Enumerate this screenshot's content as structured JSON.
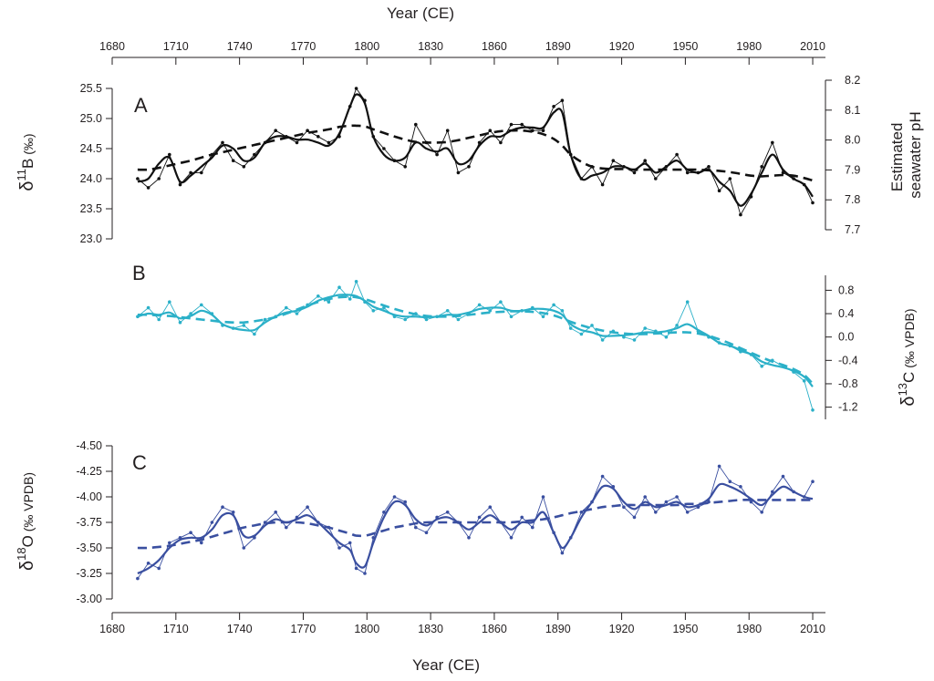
{
  "figure": {
    "xlabel_top": "Year (CE)",
    "xlabel_bottom": "Year (CE)",
    "year_ticks": [
      1680,
      1710,
      1740,
      1770,
      1800,
      1830,
      1860,
      1890,
      1920,
      1950,
      1980,
      2010
    ],
    "xlim": [
      1680,
      2016
    ]
  },
  "colors": {
    "boron": "#111111",
    "carbon": "#2bb0c8",
    "oxygen": "#3a4fa0",
    "axis": "#231f20"
  },
  "chart_data": [
    {
      "type": "line",
      "panel": "A",
      "ylabel_parts": [
        "δ",
        "11",
        "B",
        " (‰)"
      ],
      "ylim": [
        23.0,
        25.5
      ],
      "yticks": [
        25.5,
        25.0,
        24.5,
        24.0,
        23.5,
        23.0
      ],
      "y2label": [
        "Estimated",
        "seawater pH"
      ],
      "y2lim": [
        7.7,
        8.2
      ],
      "y2ticks": [
        8.2,
        8.1,
        8.0,
        7.9,
        7.8,
        7.7
      ],
      "x": [
        1692,
        1697,
        1702,
        1707,
        1712,
        1717,
        1722,
        1727,
        1732,
        1737,
        1742,
        1747,
        1752,
        1757,
        1762,
        1767,
        1772,
        1777,
        1782,
        1787,
        1792,
        1795,
        1799,
        1803,
        1808,
        1813,
        1818,
        1823,
        1828,
        1833,
        1838,
        1843,
        1848,
        1853,
        1858,
        1863,
        1868,
        1873,
        1878,
        1883,
        1888,
        1892,
        1896,
        1901,
        1906,
        1911,
        1916,
        1921,
        1926,
        1931,
        1936,
        1941,
        1946,
        1951,
        1956,
        1961,
        1966,
        1971,
        1976,
        1981,
        1986,
        1991,
        1996,
        2001,
        2006,
        2010
      ],
      "series": [
        {
          "style": "thin-markers",
          "values": [
            24.0,
            23.85,
            24.0,
            24.4,
            23.9,
            24.1,
            24.1,
            24.4,
            24.6,
            24.3,
            24.2,
            24.4,
            24.6,
            24.8,
            24.7,
            24.6,
            24.8,
            24.7,
            24.6,
            24.7,
            25.2,
            25.5,
            25.3,
            24.7,
            24.5,
            24.3,
            24.2,
            24.9,
            24.6,
            24.4,
            24.8,
            24.1,
            24.2,
            24.6,
            24.8,
            24.6,
            24.9,
            24.9,
            24.8,
            24.8,
            25.2,
            25.3,
            24.4,
            24.0,
            24.2,
            23.9,
            24.3,
            24.2,
            24.1,
            24.3,
            24.0,
            24.2,
            24.4,
            24.1,
            24.1,
            24.2,
            23.8,
            24.0,
            23.4,
            23.7,
            24.2,
            24.6,
            24.1,
            24.0,
            23.9,
            23.6
          ]
        },
        {
          "style": "thick-smooth",
          "values": [
            23.95,
            24.0,
            24.25,
            24.35,
            23.95,
            24.05,
            24.2,
            24.35,
            24.55,
            24.5,
            24.3,
            24.35,
            24.6,
            24.7,
            24.7,
            24.65,
            24.65,
            24.6,
            24.55,
            24.75,
            25.2,
            25.4,
            25.25,
            24.7,
            24.4,
            24.3,
            24.35,
            24.6,
            24.5,
            24.45,
            24.5,
            24.25,
            24.3,
            24.55,
            24.7,
            24.7,
            24.8,
            24.85,
            24.85,
            24.85,
            25.1,
            25.1,
            24.4,
            24.0,
            24.05,
            24.1,
            24.2,
            24.2,
            24.15,
            24.25,
            24.1,
            24.2,
            24.3,
            24.15,
            24.1,
            24.15,
            23.95,
            23.8,
            23.55,
            23.75,
            24.1,
            24.4,
            24.15,
            24.0,
            23.9,
            23.7
          ]
        },
        {
          "style": "dashed-trend",
          "values": [
            24.15,
            24.15,
            24.18,
            24.22,
            24.26,
            24.3,
            24.35,
            24.4,
            24.44,
            24.48,
            24.52,
            24.56,
            24.6,
            24.64,
            24.68,
            24.72,
            24.76,
            24.79,
            24.82,
            24.86,
            24.88,
            24.88,
            24.87,
            24.82,
            24.76,
            24.7,
            24.65,
            24.61,
            24.6,
            24.6,
            24.61,
            24.64,
            24.68,
            24.72,
            24.76,
            24.79,
            24.8,
            24.8,
            24.78,
            24.74,
            24.66,
            24.55,
            24.4,
            24.28,
            24.2,
            24.17,
            24.16,
            24.16,
            24.15,
            24.15,
            24.15,
            24.15,
            24.15,
            24.15,
            24.15,
            24.14,
            24.13,
            24.11,
            24.08,
            24.05,
            24.04,
            24.05,
            24.06,
            24.05,
            24.01,
            23.97
          ]
        }
      ]
    },
    {
      "type": "line",
      "panel": "B",
      "ylabel_parts": [
        "δ",
        "13",
        "C",
        " (‰ VPDB)"
      ],
      "ylim": [
        -1.3,
        0.9
      ],
      "yticks": [
        0.8,
        0.4,
        0.0,
        -0.4,
        -0.8,
        -1.2
      ],
      "x": [
        1692,
        1697,
        1702,
        1707,
        1712,
        1717,
        1722,
        1727,
        1732,
        1737,
        1742,
        1747,
        1752,
        1757,
        1762,
        1767,
        1772,
        1777,
        1782,
        1787,
        1792,
        1795,
        1799,
        1803,
        1808,
        1813,
        1818,
        1823,
        1828,
        1833,
        1838,
        1843,
        1848,
        1853,
        1858,
        1863,
        1868,
        1873,
        1878,
        1883,
        1888,
        1892,
        1896,
        1901,
        1906,
        1911,
        1916,
        1921,
        1926,
        1931,
        1936,
        1941,
        1946,
        1951,
        1956,
        1961,
        1966,
        1971,
        1976,
        1981,
        1986,
        1991,
        1996,
        2001,
        2006,
        2010
      ],
      "series": [
        {
          "style": "thin-markers",
          "values": [
            0.35,
            0.5,
            0.3,
            0.6,
            0.25,
            0.4,
            0.55,
            0.4,
            0.2,
            0.15,
            0.2,
            0.05,
            0.3,
            0.35,
            0.5,
            0.4,
            0.55,
            0.7,
            0.6,
            0.85,
            0.65,
            0.95,
            0.6,
            0.45,
            0.5,
            0.35,
            0.3,
            0.4,
            0.3,
            0.35,
            0.45,
            0.3,
            0.4,
            0.55,
            0.45,
            0.6,
            0.35,
            0.45,
            0.5,
            0.35,
            0.55,
            0.45,
            0.15,
            0.05,
            0.2,
            -0.05,
            0.1,
            0.0,
            -0.05,
            0.15,
            0.1,
            0.0,
            0.2,
            0.6,
            0.1,
            0.0,
            -0.1,
            -0.15,
            -0.25,
            -0.3,
            -0.5,
            -0.4,
            -0.5,
            -0.6,
            -0.75,
            -1.25
          ]
        },
        {
          "style": "thick-smooth",
          "values": [
            0.35,
            0.4,
            0.38,
            0.42,
            0.32,
            0.36,
            0.45,
            0.38,
            0.22,
            0.15,
            0.12,
            0.12,
            0.25,
            0.35,
            0.42,
            0.45,
            0.52,
            0.62,
            0.68,
            0.72,
            0.72,
            0.7,
            0.62,
            0.52,
            0.45,
            0.38,
            0.35,
            0.35,
            0.34,
            0.35,
            0.38,
            0.38,
            0.42,
            0.48,
            0.5,
            0.5,
            0.45,
            0.45,
            0.48,
            0.48,
            0.45,
            0.38,
            0.22,
            0.12,
            0.08,
            0.02,
            0.02,
            0.03,
            0.05,
            0.08,
            0.08,
            0.1,
            0.15,
            0.22,
            0.12,
            0.02,
            -0.1,
            -0.15,
            -0.22,
            -0.3,
            -0.42,
            -0.48,
            -0.52,
            -0.58,
            -0.68,
            -0.85
          ]
        },
        {
          "style": "dashed-trend",
          "values": [
            0.38,
            0.38,
            0.37,
            0.36,
            0.34,
            0.32,
            0.3,
            0.28,
            0.26,
            0.25,
            0.25,
            0.27,
            0.3,
            0.34,
            0.4,
            0.47,
            0.54,
            0.6,
            0.65,
            0.68,
            0.69,
            0.68,
            0.65,
            0.6,
            0.54,
            0.48,
            0.43,
            0.39,
            0.36,
            0.35,
            0.35,
            0.36,
            0.38,
            0.4,
            0.42,
            0.43,
            0.44,
            0.44,
            0.43,
            0.41,
            0.37,
            0.32,
            0.26,
            0.2,
            0.15,
            0.11,
            0.08,
            0.06,
            0.05,
            0.05,
            0.06,
            0.07,
            0.08,
            0.08,
            0.06,
            0.02,
            -0.04,
            -0.11,
            -0.19,
            -0.27,
            -0.35,
            -0.42,
            -0.48,
            -0.55,
            -0.65,
            -0.8
          ]
        }
      ]
    },
    {
      "type": "line",
      "panel": "C",
      "ylabel_parts": [
        "δ",
        "18",
        "O",
        " (‰ VPDB)"
      ],
      "ylim": [
        -4.5,
        -3.0
      ],
      "yticks": [
        -4.5,
        -4.25,
        -4.0,
        -3.75,
        -3.5,
        -3.25,
        -3.0
      ],
      "ytick_labels": [
        "-4.50",
        "-4.25",
        "-4.00",
        "-3.75",
        "-3.50",
        "-3.25",
        "-3.00"
      ],
      "reversed": true,
      "x": [
        1692,
        1697,
        1702,
        1707,
        1712,
        1717,
        1722,
        1727,
        1732,
        1737,
        1742,
        1747,
        1752,
        1757,
        1762,
        1767,
        1772,
        1777,
        1782,
        1787,
        1792,
        1795,
        1799,
        1803,
        1808,
        1813,
        1818,
        1823,
        1828,
        1833,
        1838,
        1843,
        1848,
        1853,
        1858,
        1863,
        1868,
        1873,
        1878,
        1883,
        1888,
        1892,
        1896,
        1901,
        1906,
        1911,
        1916,
        1921,
        1926,
        1931,
        1936,
        1941,
        1946,
        1951,
        1956,
        1961,
        1966,
        1971,
        1976,
        1981,
        1986,
        1991,
        1996,
        2001,
        2006,
        2010
      ],
      "series": [
        {
          "style": "thin-markers",
          "values": [
            -3.2,
            -3.35,
            -3.3,
            -3.55,
            -3.6,
            -3.65,
            -3.55,
            -3.75,
            -3.9,
            -3.85,
            -3.5,
            -3.6,
            -3.75,
            -3.85,
            -3.7,
            -3.8,
            -3.9,
            -3.75,
            -3.7,
            -3.5,
            -3.55,
            -3.3,
            -3.25,
            -3.6,
            -3.85,
            -4.0,
            -3.95,
            -3.7,
            -3.65,
            -3.8,
            -3.85,
            -3.75,
            -3.6,
            -3.8,
            -3.9,
            -3.75,
            -3.6,
            -3.8,
            -3.7,
            -4.0,
            -3.65,
            -3.45,
            -3.6,
            -3.85,
            -3.95,
            -4.2,
            -4.1,
            -3.9,
            -3.8,
            -4.0,
            -3.85,
            -3.95,
            -4.0,
            -3.85,
            -3.9,
            -3.95,
            -4.3,
            -4.15,
            -4.1,
            -3.95,
            -3.85,
            -4.05,
            -4.2,
            -4.05,
            -4.0,
            -4.15
          ]
        },
        {
          "style": "thick-smooth",
          "values": [
            -3.25,
            -3.3,
            -3.38,
            -3.5,
            -3.58,
            -3.6,
            -3.6,
            -3.68,
            -3.82,
            -3.82,
            -3.62,
            -3.62,
            -3.72,
            -3.78,
            -3.75,
            -3.78,
            -3.82,
            -3.75,
            -3.65,
            -3.55,
            -3.48,
            -3.35,
            -3.32,
            -3.55,
            -3.8,
            -3.95,
            -3.92,
            -3.78,
            -3.72,
            -3.78,
            -3.8,
            -3.75,
            -3.68,
            -3.75,
            -3.82,
            -3.75,
            -3.68,
            -3.75,
            -3.75,
            -3.85,
            -3.65,
            -3.5,
            -3.6,
            -3.8,
            -3.95,
            -4.1,
            -4.08,
            -3.95,
            -3.88,
            -3.95,
            -3.9,
            -3.92,
            -3.95,
            -3.9,
            -3.92,
            -3.98,
            -4.12,
            -4.1,
            -4.05,
            -3.98,
            -3.92,
            -4.02,
            -4.1,
            -4.05,
            -4.0,
            -3.98
          ]
        },
        {
          "style": "dashed-trend",
          "values": [
            -3.5,
            -3.5,
            -3.51,
            -3.52,
            -3.54,
            -3.56,
            -3.58,
            -3.61,
            -3.64,
            -3.67,
            -3.7,
            -3.72,
            -3.74,
            -3.75,
            -3.75,
            -3.75,
            -3.74,
            -3.72,
            -3.7,
            -3.67,
            -3.64,
            -3.62,
            -3.62,
            -3.64,
            -3.67,
            -3.7,
            -3.72,
            -3.74,
            -3.75,
            -3.75,
            -3.75,
            -3.75,
            -3.75,
            -3.75,
            -3.75,
            -3.75,
            -3.75,
            -3.76,
            -3.77,
            -3.78,
            -3.8,
            -3.82,
            -3.84,
            -3.86,
            -3.88,
            -3.9,
            -3.91,
            -3.92,
            -3.92,
            -3.92,
            -3.92,
            -3.92,
            -3.92,
            -3.93,
            -3.93,
            -3.94,
            -3.95,
            -3.96,
            -3.97,
            -3.97,
            -3.97,
            -3.97,
            -3.97,
            -3.97,
            -3.97,
            -3.97
          ]
        }
      ]
    }
  ]
}
